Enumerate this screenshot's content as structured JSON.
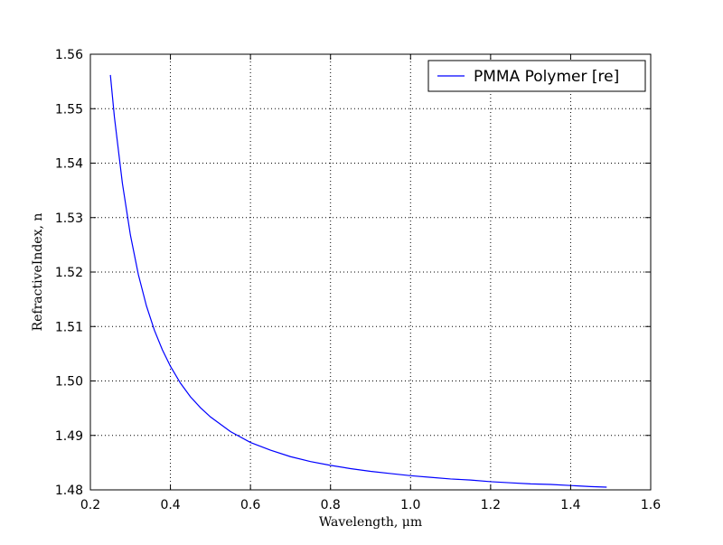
{
  "chart_data": {
    "type": "line",
    "xlabel": "Wavelength, μm",
    "ylabel": "RefractiveIndex, n",
    "xlim": [
      0.2,
      1.6
    ],
    "ylim": [
      1.48,
      1.56
    ],
    "xticks": [
      "0.2",
      "0.4",
      "0.6",
      "0.8",
      "1.0",
      "1.2",
      "1.4",
      "1.6"
    ],
    "yticks": [
      "1.48",
      "1.49",
      "1.50",
      "1.51",
      "1.52",
      "1.53",
      "1.54",
      "1.55",
      "1.56"
    ],
    "grid": true,
    "legend_position": "top-right",
    "series": [
      {
        "name": "PMMA Polymer [re]",
        "color": "#0000ff",
        "x": [
          0.25,
          0.26,
          0.28,
          0.3,
          0.32,
          0.34,
          0.36,
          0.38,
          0.4,
          0.425,
          0.45,
          0.475,
          0.5,
          0.55,
          0.6,
          0.65,
          0.7,
          0.75,
          0.8,
          0.85,
          0.9,
          0.95,
          1.0,
          1.05,
          1.1,
          1.15,
          1.2,
          1.25,
          1.3,
          1.35,
          1.4,
          1.45,
          1.49
        ],
        "y": [
          1.5562,
          1.5485,
          1.5363,
          1.5268,
          1.5195,
          1.5138,
          1.5093,
          1.5057,
          1.5027,
          1.4996,
          1.4971,
          1.4951,
          1.4934,
          1.4907,
          1.4887,
          1.4873,
          1.4861,
          1.4852,
          1.4845,
          1.4839,
          1.4834,
          1.483,
          1.4826,
          1.4823,
          1.482,
          1.4818,
          1.4815,
          1.4813,
          1.4811,
          1.481,
          1.4808,
          1.4806,
          1.4805
        ]
      }
    ]
  }
}
